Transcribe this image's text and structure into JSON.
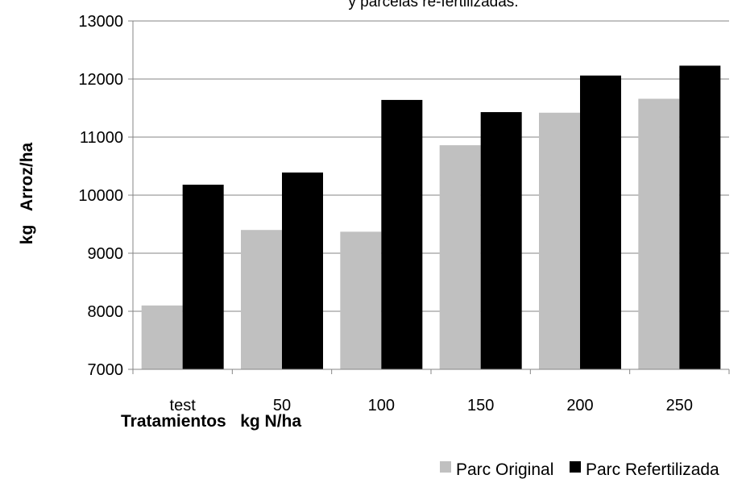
{
  "chart_data": {
    "type": "bar",
    "title": "y parcelas re-fertilizadas.",
    "xlabel": "Tratamientos   kg N/ha",
    "ylabel": "kg   Arroz/ha",
    "categories": [
      "test",
      "50",
      "100",
      "150",
      "200",
      "250"
    ],
    "ylim": [
      7000,
      13000
    ],
    "yticks": [
      7000,
      8000,
      9000,
      10000,
      11000,
      12000,
      13000
    ],
    "grid": true,
    "legend_position": "bottom-right",
    "series": [
      {
        "name": "Parc Original",
        "color": "#c0c0c0",
        "values": [
          8100,
          9400,
          9370,
          10860,
          11420,
          11660
        ]
      },
      {
        "name": "Parc Refertilizada",
        "color": "#000000",
        "values": [
          10180,
          10390,
          11640,
          11430,
          12060,
          12230
        ]
      }
    ]
  }
}
